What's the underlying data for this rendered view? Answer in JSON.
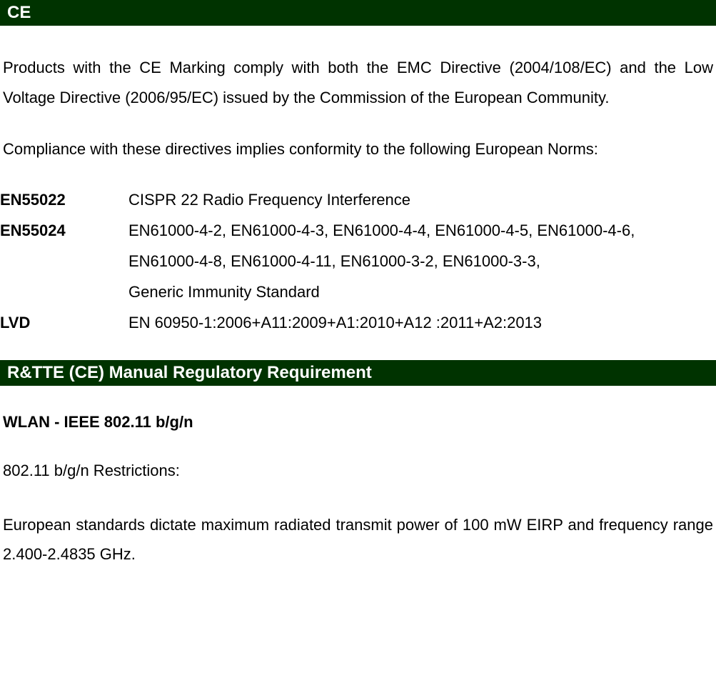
{
  "sections": {
    "ce": {
      "title": "CE",
      "intro": "Products with the CE Marking comply with both the EMC Directive (2004/108/EC) and the Low Voltage Directive (2006/95/EC) issued by the Commission of the European Community.",
      "conformity": "Compliance with these directives implies conformity to the following European Norms:",
      "standards": {
        "en55022": {
          "label": "EN55022",
          "desc": "CISPR 22 Radio Frequency Interference"
        },
        "en55024": {
          "label": "EN55024",
          "desc_line1": "EN61000-4-2, EN61000-4-3, EN61000-4-4, EN61000-4-5, EN61000-4-6,",
          "desc_line2": "EN61000-4-8, EN61000-4-11, EN61000-3-2, EN61000-3-3,",
          "desc_line3": "Generic Immunity Standard"
        },
        "lvd": {
          "label": "LVD",
          "desc": "EN 60950-1:2006+A11:2009+A1:2010+A12 :2011+A2:2013"
        }
      }
    },
    "rtte": {
      "title": "R&TTE (CE) Manual Regulatory Requirement",
      "wlan_heading": "WLAN - IEEE 802.11 b/g/n",
      "restrictions_heading": "802.11 b/g/n Restrictions:",
      "restrictions_body": "European standards dictate maximum radiated transmit power of 100 mW EIRP and frequency range 2.400-2.4835 GHz."
    }
  },
  "colors": {
    "header_bg": "#003300",
    "header_text": "#ffffff",
    "body_text": "#000000",
    "page_bg": "#ffffff"
  }
}
